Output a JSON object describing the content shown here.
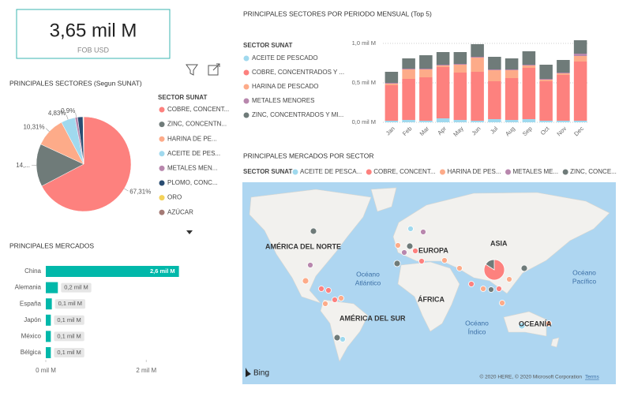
{
  "card": {
    "value": "3,65 mil M",
    "label": "FOB USD"
  },
  "chart_data": [
    {
      "type": "pie",
      "title": "PRINCIPALES SECTORES (Segun SUNAT)",
      "legend_title": "SECTOR SUNAT",
      "categories": [
        "COBRE, CONCENT...",
        "ZINC, CONCENTN...",
        "HARINA DE PE...",
        "ACEITE DE PES...",
        "METALES MEN...",
        "PLOMO, CONC...",
        "ORO",
        "AZÚCAR"
      ],
      "values": [
        67.31,
        14.6,
        10.31,
        4.83,
        0.9,
        1.8,
        0.15,
        0.1
      ],
      "value_labels": [
        "67,31%",
        "14,...",
        "10,31%",
        "4,83%",
        "0,9%",
        null,
        null,
        null
      ],
      "colors": [
        "#fd817e",
        "#6f7b79",
        "#fdab89",
        "#a0d9ee",
        "#b887ad",
        "#2a4d72",
        "#f4d25a",
        "#a47a75"
      ]
    },
    {
      "type": "stacked_bar",
      "title": "PRINCIPALES SECTORES POR PERIODO MENSUAL (Top 5)",
      "legend_title": "SECTOR SUNAT",
      "categories": [
        "Jan",
        "Feb",
        "Mar",
        "Apr",
        "May",
        "Jun",
        "Jul",
        "Aug",
        "Sep",
        "Oct",
        "Nov",
        "Dec"
      ],
      "series": [
        {
          "name": "ACEITE DE PESCADO",
          "color": "#a0d9ee",
          "values": [
            0.02,
            0.03,
            0.02,
            0.05,
            0.03,
            0.02,
            0.04,
            0.03,
            0.04,
            0.02,
            0.02,
            0.02
          ]
        },
        {
          "name": "COBRE, CONCENTRADOS Y ...",
          "color": "#fd817e",
          "values": [
            0.45,
            0.52,
            0.55,
            0.65,
            0.6,
            0.62,
            0.48,
            0.53,
            0.65,
            0.5,
            0.58,
            0.75
          ]
        },
        {
          "name": "HARINA DE PESCADO",
          "color": "#fdab89",
          "values": [
            0.02,
            0.12,
            0.1,
            0.02,
            0.1,
            0.18,
            0.14,
            0.1,
            0.03,
            0.02,
            0.02,
            0.07
          ]
        },
        {
          "name": "METALES MENORES",
          "color": "#b887ad",
          "values": [
            0.01,
            0.01,
            0.01,
            0.01,
            0.01,
            0.01,
            0.01,
            0.01,
            0.01,
            0.01,
            0.01,
            0.03
          ]
        },
        {
          "name": "ZINC, CONCENTRADOS Y MI...",
          "color": "#6f7b79",
          "values": [
            0.14,
            0.13,
            0.17,
            0.16,
            0.15,
            0.16,
            0.16,
            0.14,
            0.17,
            0.18,
            0.16,
            0.17
          ]
        }
      ],
      "ylim": [
        0,
        1.1
      ],
      "yticks": [
        {
          "value": 0,
          "label": "0,0 mil M"
        },
        {
          "value": 0.5,
          "label": "0,5 mil M"
        },
        {
          "value": 1,
          "label": "1,0 mil M"
        }
      ],
      "grid": true
    },
    {
      "type": "hbar",
      "title": "PRINCIPALES MERCADOS",
      "categories": [
        "China",
        "Alemania",
        "España",
        "Japón",
        "México",
        "Bélgica"
      ],
      "values": [
        2.65,
        0.24,
        0.12,
        0.1,
        0.1,
        0.1
      ],
      "value_labels": [
        "2,6 mil M",
        "0,2 mil M",
        "0,1 mil M",
        "0,1 mil M",
        "0,1 mil M",
        "0,1 mil M"
      ],
      "color": "#01b8aa",
      "xlim": [
        0,
        2.75
      ],
      "xticks": [
        {
          "value": 0,
          "label": "0 mil M"
        },
        {
          "value": 2,
          "label": "2 mil M"
        }
      ]
    }
  ],
  "map": {
    "title": "PRINCIPALES MERCADOS POR SECTOR",
    "legend_title": "SECTOR SUNAT",
    "legend": [
      "ACEITE DE PESCA...",
      "COBRE, CONCENT...",
      "HARINA DE PES...",
      "METALES ME...",
      "ZINC, CONCE..."
    ],
    "continents": [
      "AMÉRICA DEL NORTE",
      "EUROPA",
      "ASIA",
      "ÁFRICA",
      "AMÉRICA DEL SUR",
      "OCEANÍA"
    ],
    "oceans": [
      [
        "Océano",
        "Atlántico"
      ],
      [
        "Océano",
        "Pacífico"
      ],
      [
        "Océano",
        "Índico"
      ]
    ],
    "brand": "Bing",
    "copyright": "© 2020 HERE, © 2020 Microsoft Corporation",
    "terms": "Terms"
  }
}
